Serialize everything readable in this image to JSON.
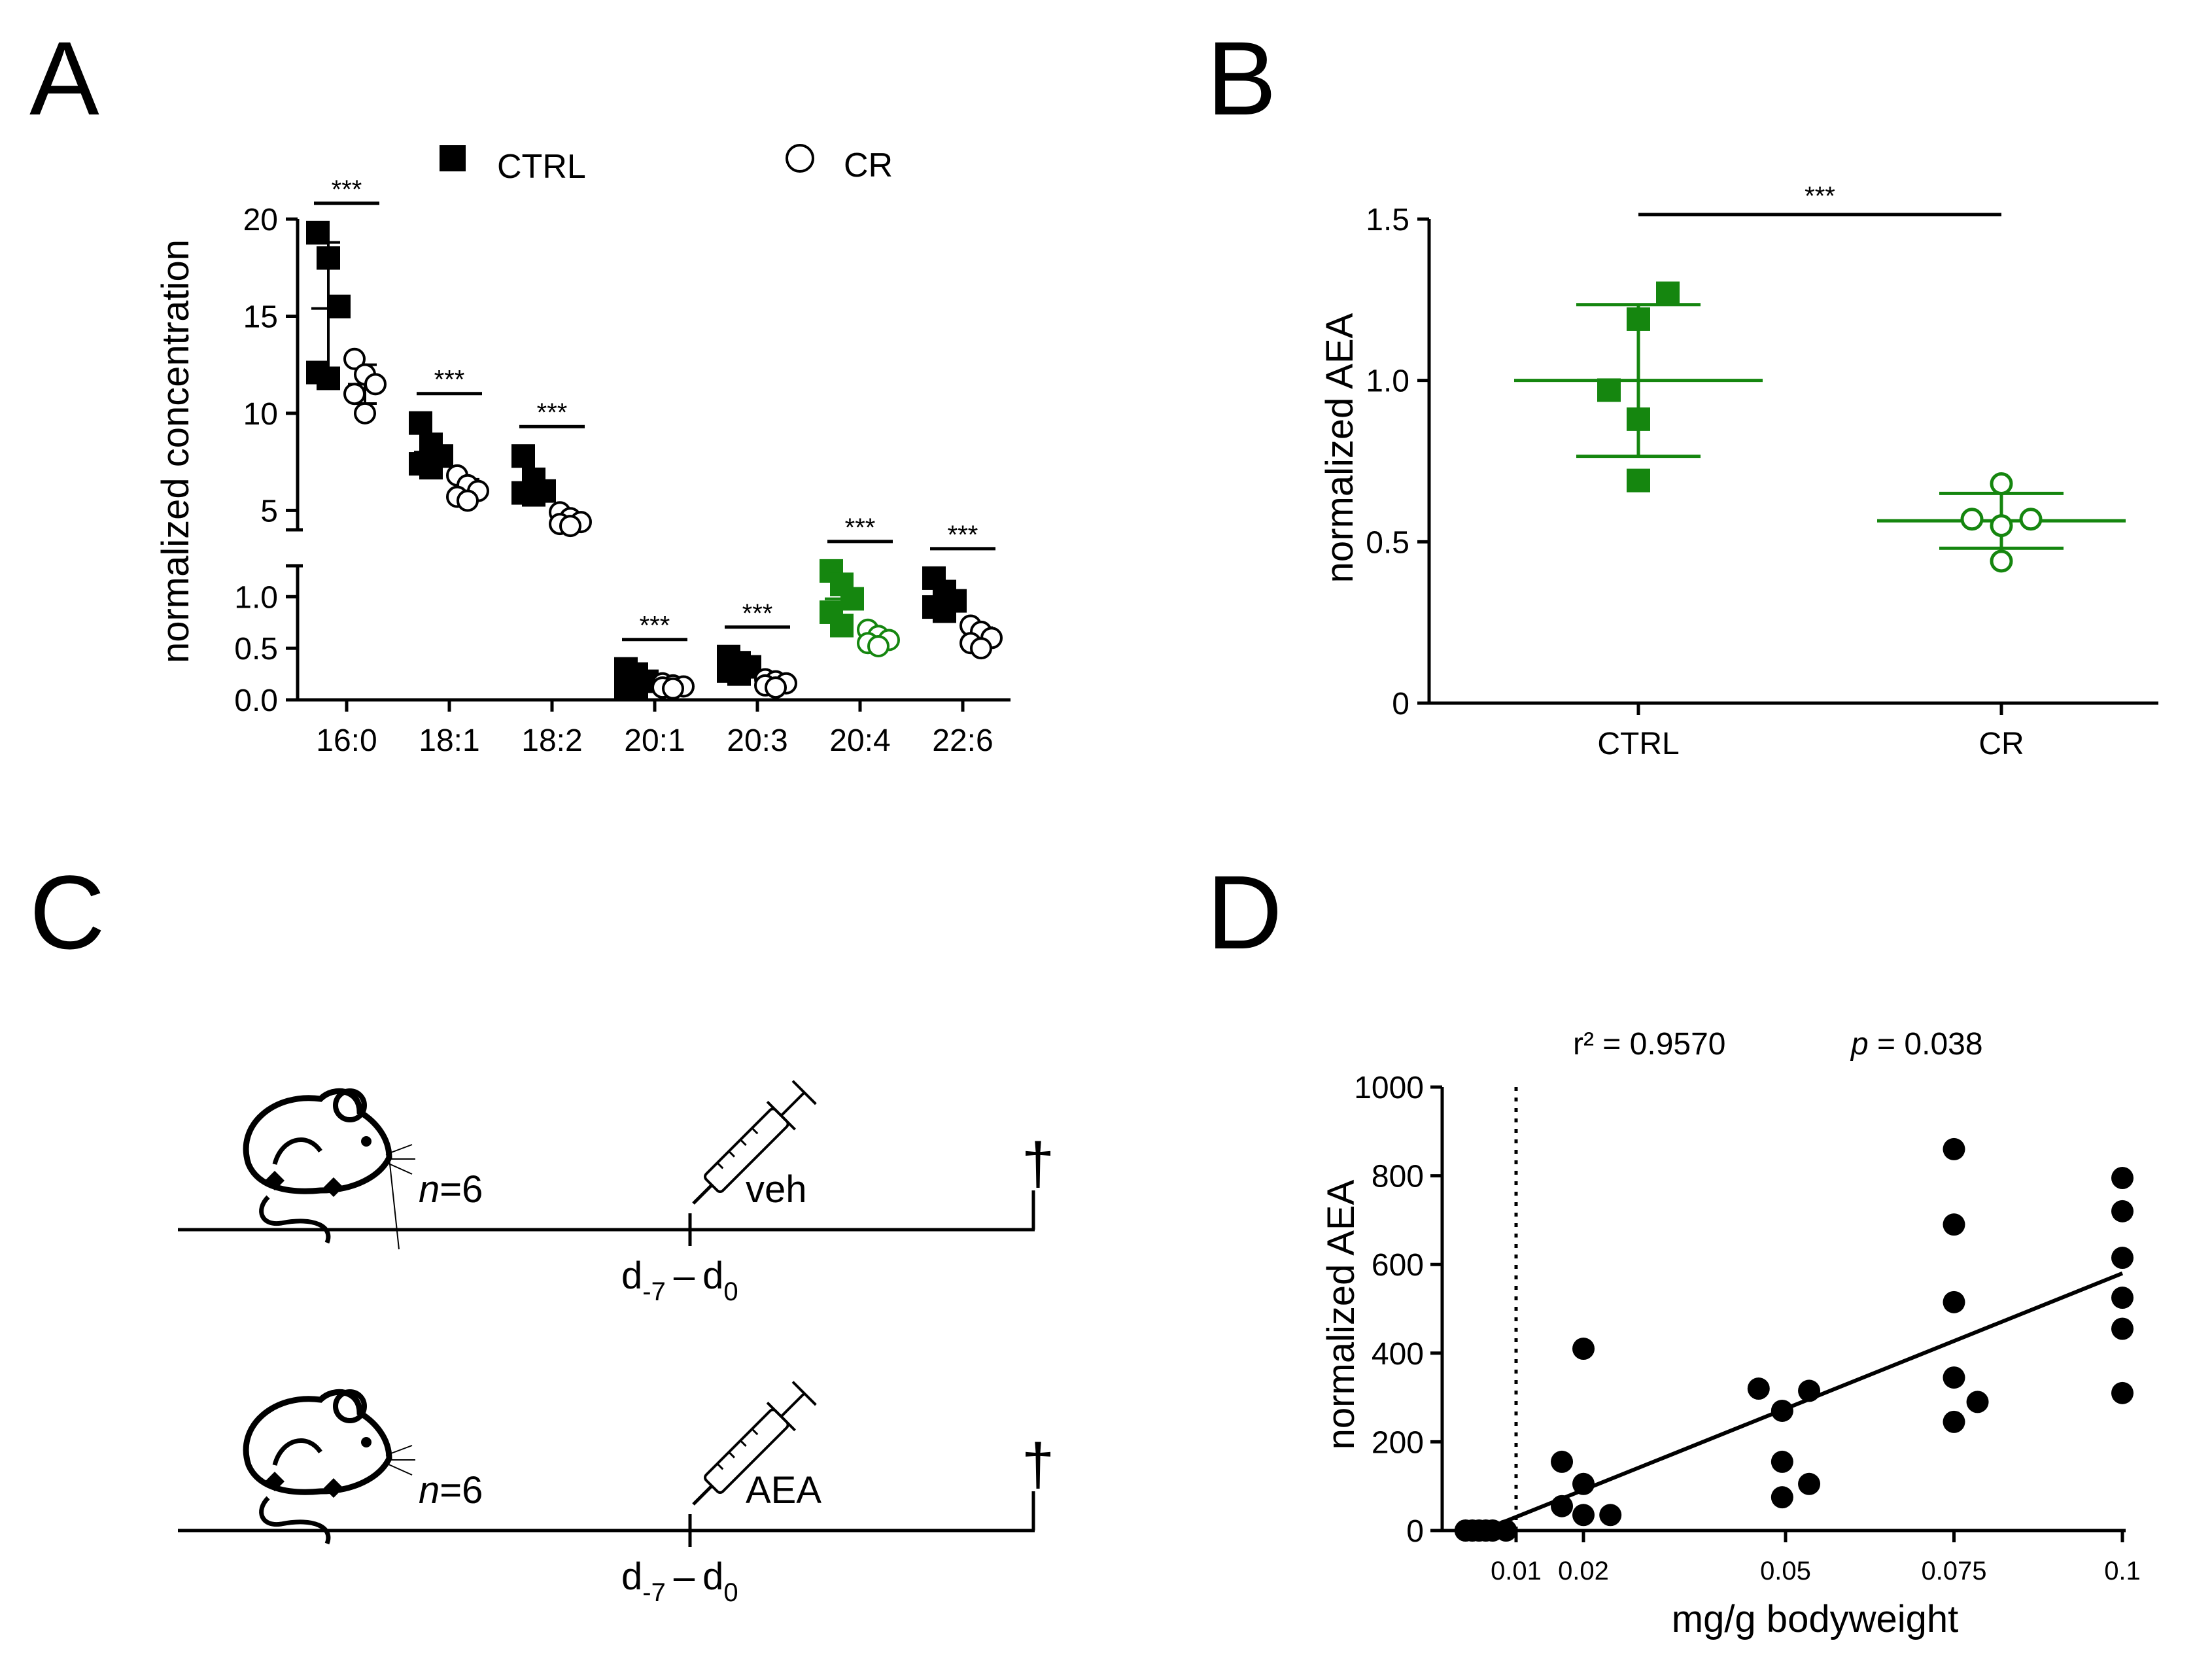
{
  "panels": {
    "A": "A",
    "B": "B",
    "C": "C",
    "D": "D"
  },
  "colors": {
    "black": "#000000",
    "green": "#15860f"
  },
  "chart_data": [
    {
      "id": "A",
      "type": "scatter",
      "title": "",
      "ylabel": "normalized concentration",
      "xlabel": "",
      "legend": [
        {
          "name": "CTRL",
          "marker": "filled-square"
        },
        {
          "name": "CR",
          "marker": "open-circle"
        }
      ],
      "legend_position": "top",
      "categories": [
        "16:0",
        "18:1",
        "18:2",
        "20:1",
        "20:3",
        "20:4",
        "22:6"
      ],
      "y_broken_axis": {
        "lower": {
          "range": [
            0,
            1.3
          ],
          "ticks": [
            "0.0",
            "0.5",
            "1.0"
          ],
          "tick_values": [
            0,
            0.5,
            1.0
          ]
        },
        "upper": {
          "range": [
            4,
            20
          ],
          "ticks": [
            "5",
            "10",
            "15",
            "20"
          ],
          "tick_values": [
            5,
            10,
            15,
            20
          ]
        }
      },
      "significance": [
        "***",
        "***",
        "***",
        "***",
        "***",
        "***",
        "***"
      ],
      "highlight_category": "20:4",
      "series": [
        {
          "name": "CTRL",
          "points": [
            [
              19.3,
              18.0,
              15.5,
              12.1,
              11.8
            ],
            [
              9.5,
              8.4,
              7.8,
              7.4,
              7.2
            ],
            [
              7.8,
              6.6,
              6.0,
              5.9,
              5.8
            ],
            [
              0.3,
              0.25,
              0.18,
              0.12,
              0.1
            ],
            [
              0.42,
              0.36,
              0.32,
              0.28,
              0.25
            ],
            [
              1.25,
              1.12,
              0.98,
              0.85,
              0.72
            ],
            [
              1.18,
              1.05,
              0.96,
              0.9,
              0.86
            ]
          ],
          "mean": [
            15.4,
            8.0,
            6.3,
            0.19,
            0.33,
            0.98,
            0.98
          ],
          "sd": [
            3.4,
            0.9,
            0.8,
            0.08,
            0.07,
            0.19,
            0.13
          ]
        },
        {
          "name": "CR",
          "points": [
            [
              12.8,
              12.0,
              11.5,
              11.0,
              10.0
            ],
            [
              6.8,
              6.3,
              6.0,
              5.7,
              5.5
            ],
            [
              4.9,
              4.6,
              4.4,
              4.3,
              4.2
            ],
            [
              0.16,
              0.14,
              0.13,
              0.12,
              0.11
            ],
            [
              0.2,
              0.18,
              0.16,
              0.14,
              0.12
            ],
            [
              0.68,
              0.62,
              0.58,
              0.55,
              0.52
            ],
            [
              0.72,
              0.66,
              0.6,
              0.55,
              0.5
            ]
          ],
          "mean": [
            11.5,
            6.1,
            4.5,
            0.13,
            0.16,
            0.59,
            0.61
          ],
          "sd": [
            1.0,
            0.5,
            0.3,
            0.02,
            0.03,
            0.06,
            0.09
          ]
        }
      ]
    },
    {
      "id": "B",
      "type": "scatter",
      "title": "",
      "ylabel": "normalized AEA",
      "xlabel": "",
      "categories": [
        "CTRL",
        "CR"
      ],
      "ylim": [
        0,
        1.5
      ],
      "yticks": [
        "0",
        "0.5",
        "1.0",
        "1.5"
      ],
      "ytick_values": [
        0,
        0.5,
        1.0,
        1.5
      ],
      "significance": "***",
      "series": [
        {
          "name": "CTRL",
          "marker": "filled-square",
          "values": [
            1.27,
            1.19,
            0.97,
            0.88,
            0.69
          ],
          "mean": 1.0,
          "sd": 0.235
        },
        {
          "name": "CR",
          "marker": "open-circle",
          "values": [
            0.68,
            0.57,
            0.57,
            0.55,
            0.44
          ],
          "mean": 0.565,
          "sd": 0.085
        }
      ]
    },
    {
      "id": "D",
      "type": "scatter",
      "title": "",
      "xlabel": "mg/g bodyweight",
      "ylabel": "normalized AEA",
      "xlim": [
        0,
        0.1
      ],
      "ylim": [
        0,
        1000
      ],
      "xticks": [
        "0.01",
        "0.02",
        "0.05",
        "0.075",
        "0.1"
      ],
      "xtick_values": [
        0.01,
        0.02,
        0.05,
        0.075,
        0.1
      ],
      "yticks": [
        "0",
        "200",
        "400",
        "600",
        "800",
        "1000"
      ],
      "ytick_values": [
        0,
        200,
        400,
        600,
        800,
        1000
      ],
      "reference_line_x": 0.01,
      "stats": {
        "r2_text": "r² = 0.9570",
        "p_label": "p",
        "p_value_text": " = 0.038"
      },
      "fit_line": {
        "x": [
          0.005,
          0.1
        ],
        "y": [
          0,
          580
        ]
      },
      "points": [
        {
          "x": 0.0025,
          "y": 0
        },
        {
          "x": 0.0035,
          "y": 0
        },
        {
          "x": 0.0045,
          "y": 0
        },
        {
          "x": 0.0055,
          "y": 0
        },
        {
          "x": 0.0065,
          "y": 0
        },
        {
          "x": 0.0085,
          "y": 0
        },
        {
          "x": 0.0168,
          "y": 155
        },
        {
          "x": 0.0168,
          "y": 55
        },
        {
          "x": 0.02,
          "y": 410
        },
        {
          "x": 0.02,
          "y": 105
        },
        {
          "x": 0.02,
          "y": 35
        },
        {
          "x": 0.024,
          "y": 35
        },
        {
          "x": 0.046,
          "y": 320
        },
        {
          "x": 0.0495,
          "y": 270
        },
        {
          "x": 0.0495,
          "y": 155
        },
        {
          "x": 0.0495,
          "y": 75
        },
        {
          "x": 0.0535,
          "y": 315
        },
        {
          "x": 0.0535,
          "y": 105
        },
        {
          "x": 0.075,
          "y": 860
        },
        {
          "x": 0.075,
          "y": 690
        },
        {
          "x": 0.075,
          "y": 515
        },
        {
          "x": 0.075,
          "y": 345
        },
        {
          "x": 0.075,
          "y": 245
        },
        {
          "x": 0.0785,
          "y": 290
        },
        {
          "x": 0.1,
          "y": 795
        },
        {
          "x": 0.1,
          "y": 720
        },
        {
          "x": 0.1,
          "y": 615
        },
        {
          "x": 0.1,
          "y": 525
        },
        {
          "x": 0.1,
          "y": 455
        },
        {
          "x": 0.1,
          "y": 310
        }
      ]
    }
  ],
  "diagram_C": {
    "rows": [
      {
        "n_prefix": "n",
        "n_value": "=6",
        "treatment": "veh",
        "timepoint_base_1": "d",
        "timepoint_sub_1": "-7",
        "dash": "–",
        "timepoint_base_2": "d",
        "timepoint_sub_2": "0"
      },
      {
        "n_prefix": "n",
        "n_value": "=6",
        "treatment": "AEA",
        "timepoint_base_1": "d",
        "timepoint_sub_1": "-7",
        "dash": "–",
        "timepoint_base_2": "d",
        "timepoint_sub_2": "0"
      }
    ],
    "end_symbol": "†"
  }
}
